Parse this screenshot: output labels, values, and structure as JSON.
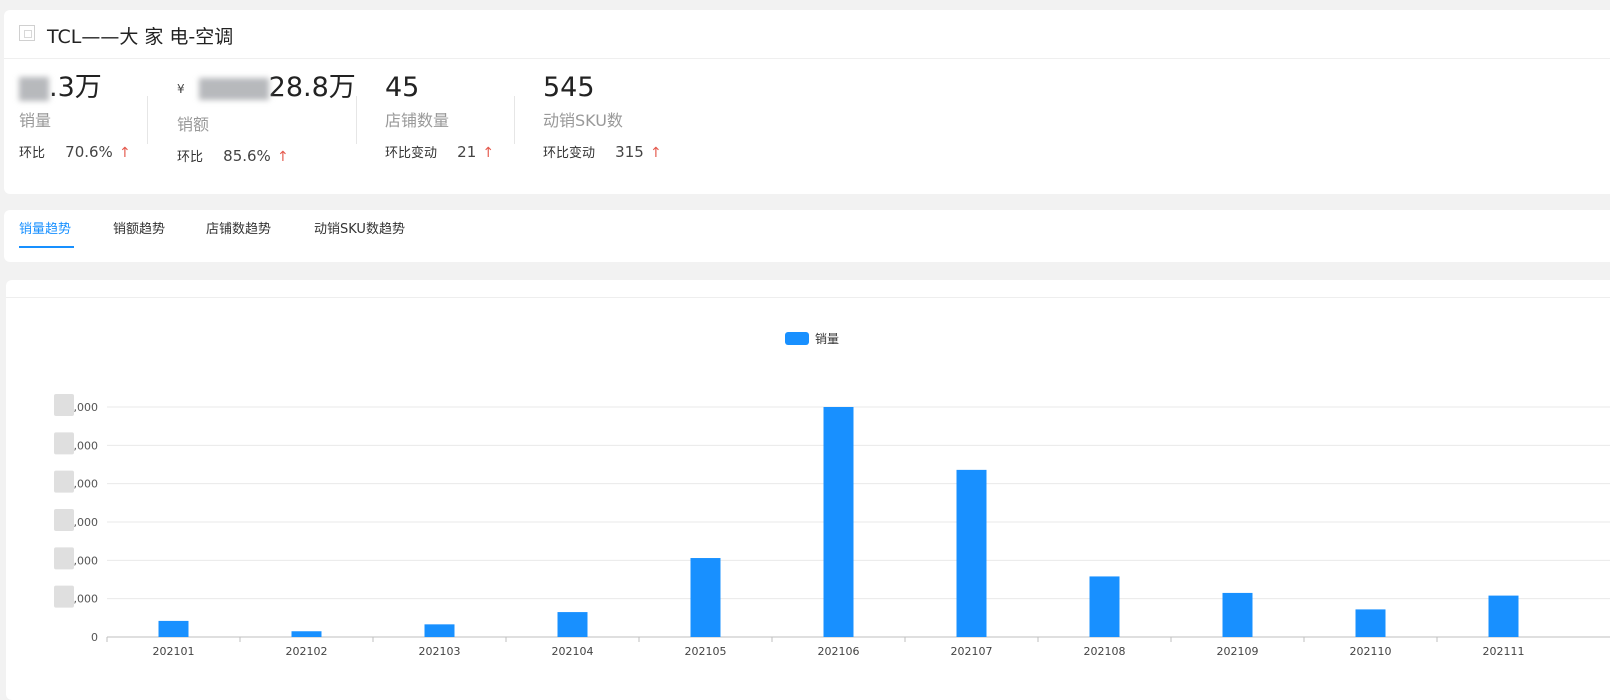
{
  "brand": {
    "title": "TCL——大 家 电-空调",
    "icon": "brand-placeholder-icon"
  },
  "metrics": [
    {
      "key": "sales_volume",
      "value": ".3万",
      "label": "销量",
      "change_label": "环比",
      "change_value": "70.6%",
      "arrow": "↑"
    },
    {
      "key": "sales_amount",
      "currency": "¥",
      "value": "28.8万",
      "label": "销额",
      "change_label": "环比",
      "change_value": "85.6%",
      "arrow": "↑"
    },
    {
      "key": "store_count",
      "value": "45",
      "label": "店铺数量",
      "change_label": "环比变动",
      "change_value": "21",
      "arrow": "↑"
    },
    {
      "key": "active_sku",
      "value": "545",
      "label": "动销SKU数",
      "change_label": "环比变动",
      "change_value": "315",
      "arrow": "↑"
    }
  ],
  "tabs": [
    {
      "label": "销量趋势",
      "active": true
    },
    {
      "label": "销额趋势",
      "active": false
    },
    {
      "label": "店铺数趋势",
      "active": false
    },
    {
      "label": "动销SKU数趋势",
      "active": false
    }
  ],
  "colors": {
    "accent": "#1890ff",
    "up_arrow": "#e55a4e",
    "bar": "#1890ff"
  },
  "chart_data": {
    "type": "bar",
    "legend": [
      "销量"
    ],
    "legend_position": "top-center",
    "categories": [
      "202101",
      "202102",
      "202103",
      "202104",
      "202105",
      "202106",
      "202107",
      "202108",
      "202109",
      "202110",
      "202111"
    ],
    "series": [
      {
        "name": "销量",
        "values": [
          0.42,
          0.15,
          0.33,
          0.65,
          2.06,
          6.0,
          4.36,
          1.58,
          1.15,
          0.72,
          1.08
        ]
      }
    ],
    "y_ticks": [
      ",000",
      ",000",
      ",000",
      ",000",
      ",000",
      ",000",
      "0"
    ],
    "ylim": [
      0,
      6
    ],
    "grid": true
  }
}
